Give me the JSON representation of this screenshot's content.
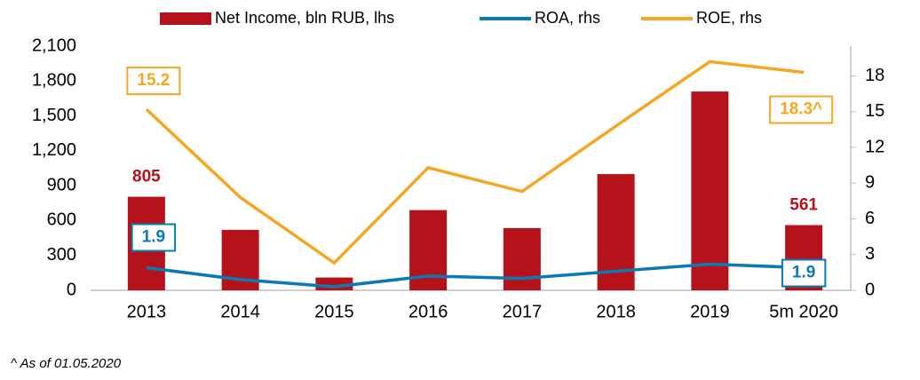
{
  "chart_data": {
    "type": "bar",
    "categories": [
      "2013",
      "2014",
      "2015",
      "2016",
      "2017",
      "2018",
      "2019",
      "5m 2020"
    ],
    "series": [
      {
        "name": "Net Income, bln RUB, lhs",
        "type": "bar",
        "color": "#b5121b",
        "values": [
          805,
          520,
          110,
          690,
          535,
          1000,
          1710,
          561
        ],
        "value_labels": [
          "805",
          null,
          null,
          null,
          null,
          null,
          null,
          "561"
        ]
      },
      {
        "name": "ROA, rhs",
        "type": "line",
        "axis": "y2",
        "color": "#0a7ab5",
        "values": [
          1.9,
          0.9,
          0.3,
          1.2,
          1.0,
          1.6,
          2.2,
          1.9
        ],
        "value_labels": [
          "1.9",
          null,
          null,
          null,
          null,
          null,
          null,
          "1.9"
        ]
      },
      {
        "name": "ROE, rhs",
        "type": "line",
        "axis": "y2",
        "color": "#f5a623",
        "values": [
          15.2,
          7.8,
          2.3,
          10.3,
          8.3,
          13.8,
          19.2,
          18.3
        ],
        "value_labels": [
          "15.2",
          null,
          null,
          null,
          null,
          null,
          null,
          "18.3^"
        ]
      }
    ],
    "ylim": [
      0,
      2100
    ],
    "yticks": [
      0,
      {
        "value": 300,
        "label": "300"
      },
      600,
      900,
      {
        "value": 1200,
        "label": "1,200"
      },
      {
        "value": 1500,
        "label": "1,500"
      },
      {
        "value": 1800,
        "label": "1,800"
      },
      {
        "value": 2100,
        "label": "2,100"
      }
    ],
    "y2lim": [
      0,
      20.5
    ],
    "y2ticks": [
      0,
      3,
      6,
      9,
      12,
      15,
      18
    ],
    "legend": "top",
    "footnote": "^ As of 01.05.2020"
  }
}
